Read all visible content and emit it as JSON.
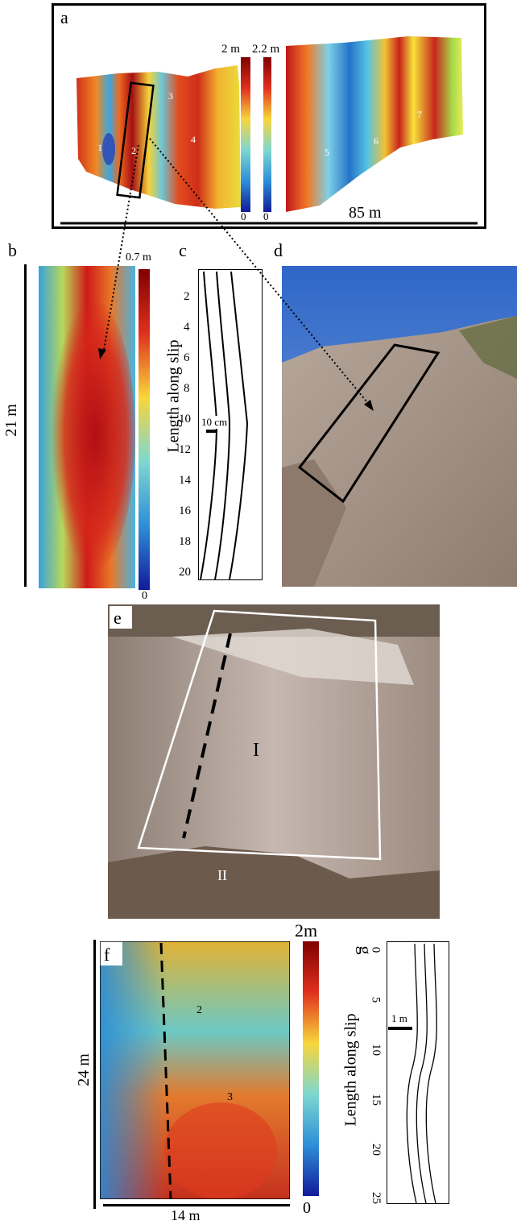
{
  "figure": {
    "panels": {
      "a": {
        "letter": "a",
        "scale_label": "85 m",
        "colorbar_left": {
          "max": "2 m",
          "min": "0"
        },
        "colorbar_right": {
          "max": "2.2 m",
          "min": "0"
        },
        "patch_numbers": [
          "1",
          "2",
          "3",
          "4",
          "5",
          "6",
          "7"
        ]
      },
      "b": {
        "letter": "b",
        "scale_label": "21 m",
        "colorbar": {
          "max": "0.7 m",
          "min": "0"
        }
      },
      "c": {
        "letter": "c",
        "ylabel": "Length along slip",
        "ticks": [
          "2",
          "4",
          "6",
          "8",
          "10",
          "12",
          "14",
          "16",
          "18",
          "20"
        ],
        "scale_label": "10 cm"
      },
      "d": {
        "letter": "d"
      },
      "e": {
        "letter": "e",
        "region_labels": [
          "I",
          "II"
        ]
      },
      "f": {
        "letter": "f",
        "vertical_scale": "24 m",
        "horizontal_scale": "14 m",
        "colorbar": {
          "max": "2m",
          "min": "0"
        },
        "patch_numbers": [
          "2",
          "3"
        ]
      },
      "g": {
        "letter": "g",
        "ylabel": "Length along slip",
        "ticks": [
          "0",
          "5",
          "10",
          "15",
          "20",
          "25"
        ],
        "scale_label": "1 m"
      }
    }
  }
}
